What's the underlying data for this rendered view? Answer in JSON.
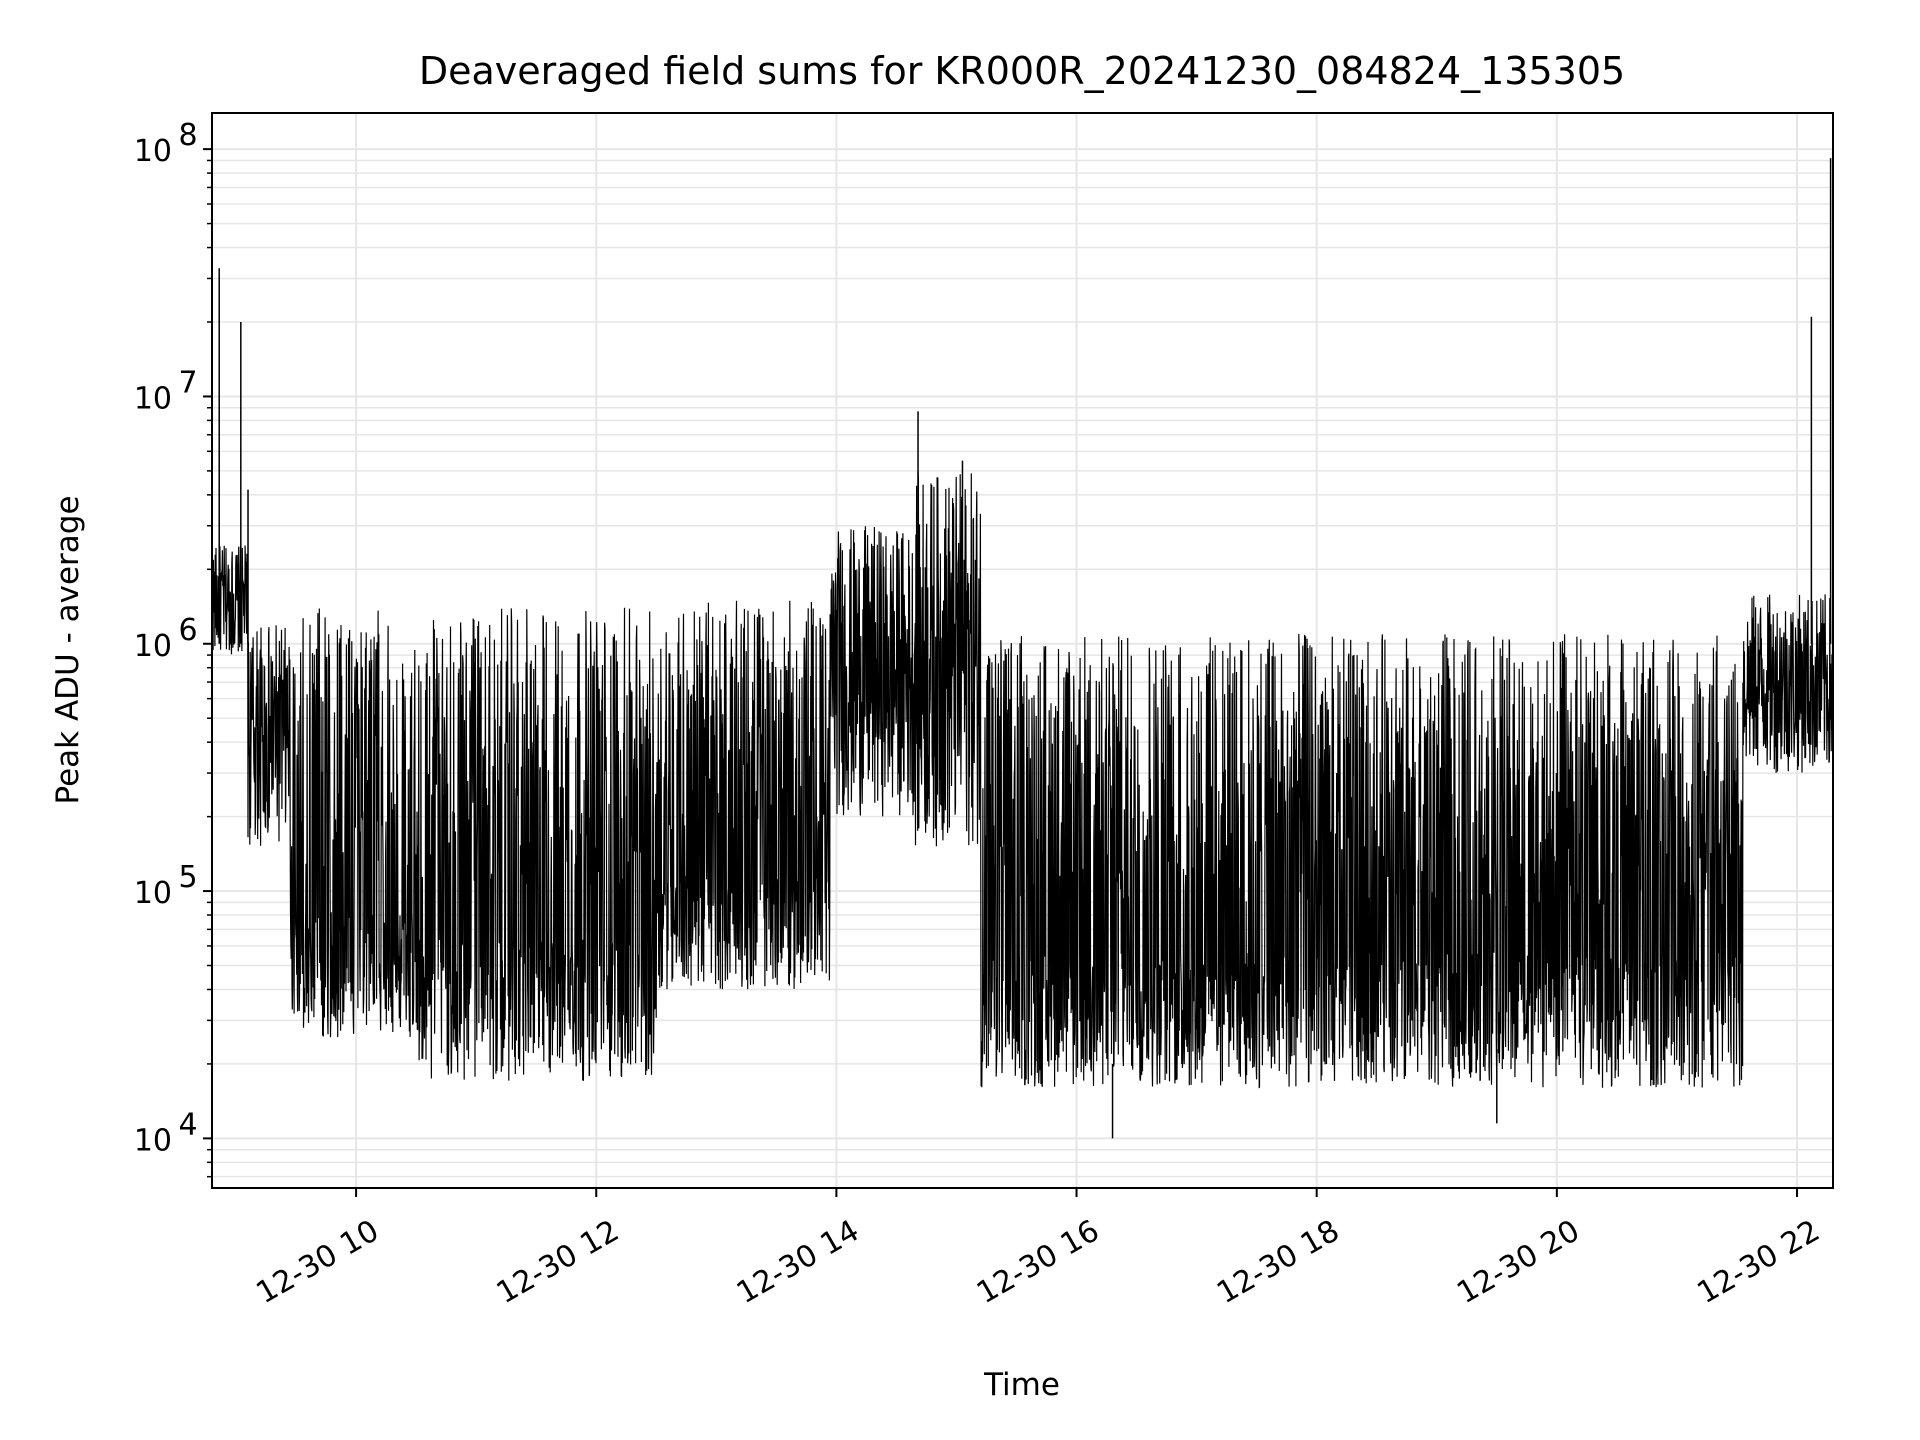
{
  "chart_data": {
    "type": "line",
    "title": "Deaveraged field sums for KR000R_20241230_084824_135305",
    "xlabel": "Time",
    "ylabel": "Peak ADU - average",
    "yscale": "log",
    "grid": true,
    "legend": "none",
    "line_color": "#000000",
    "x_range_hours": [
      8.8,
      22.3
    ],
    "ylim": [
      6300,
      140000000
    ],
    "x_ticks": [
      {
        "hour": 10,
        "label": "12-30 10"
      },
      {
        "hour": 12,
        "label": "12-30 12"
      },
      {
        "hour": 14,
        "label": "12-30 14"
      },
      {
        "hour": 16,
        "label": "12-30 16"
      },
      {
        "hour": 18,
        "label": "12-30 18"
      },
      {
        "hour": 20,
        "label": "12-30 20"
      },
      {
        "hour": 22,
        "label": "12-30 22"
      }
    ],
    "y_ticks": [
      {
        "value": 10000,
        "base": "10",
        "exp": "4"
      },
      {
        "value": 100000,
        "base": "10",
        "exp": "5"
      },
      {
        "value": 1000000,
        "base": "10",
        "exp": "6"
      },
      {
        "value": 10000000,
        "base": "10",
        "exp": "7"
      },
      {
        "value": 100000000,
        "base": "10",
        "exp": "8"
      }
    ],
    "series": [
      {
        "segments": [
          {
            "start_hour": 8.8,
            "end_hour": 9.1,
            "low": 900000,
            "high": 2500000,
            "notes": "noisy"
          },
          {
            "start_hour": 9.1,
            "end_hour": 9.45,
            "low": 150000,
            "high": 1200000,
            "notes": "decline"
          },
          {
            "start_hour": 9.45,
            "end_hour": 10.5,
            "low": 25000,
            "high": 1400000,
            "notes": "spiky"
          },
          {
            "start_hour": 10.5,
            "end_hour": 12.5,
            "low": 17000,
            "high": 1400000,
            "notes": "spiky"
          },
          {
            "start_hour": 12.5,
            "end_hour": 13.95,
            "low": 40000,
            "high": 1500000,
            "notes": "spiky"
          },
          {
            "start_hour": 13.95,
            "end_hour": 14.65,
            "low": 200000,
            "high": 3000000,
            "notes": "elevated"
          },
          {
            "start_hour": 14.65,
            "end_hour": 15.2,
            "low": 150000,
            "high": 5000000,
            "notes": "elevated"
          },
          {
            "start_hour": 15.2,
            "end_hour": 21.55,
            "low": 16000,
            "high": 1100000,
            "notes": "dense"
          },
          {
            "start_hour": 21.55,
            "end_hour": 22.3,
            "low": 300000,
            "high": 1600000,
            "notes": "rising"
          }
        ],
        "spikes": [
          {
            "hour": 8.86,
            "value": 33000000
          },
          {
            "hour": 9.04,
            "value": 20000000
          },
          {
            "hour": 9.1,
            "value": 4200000
          },
          {
            "hour": 14.68,
            "value": 8700000
          },
          {
            "hour": 15.05,
            "value": 5500000
          },
          {
            "hour": 22.12,
            "value": 21000000
          },
          {
            "hour": 22.28,
            "value": 92000000
          },
          {
            "hour": 16.3,
            "value": 10000
          },
          {
            "hour": 19.5,
            "value": 11500
          }
        ]
      }
    ]
  }
}
